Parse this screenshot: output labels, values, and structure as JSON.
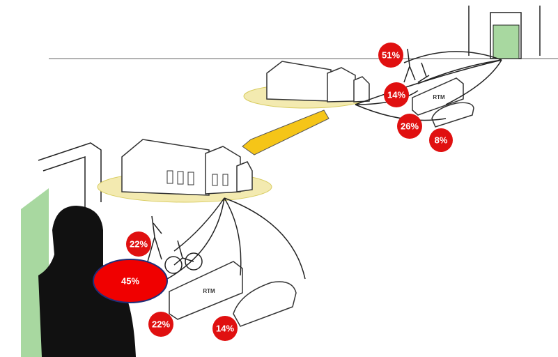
{
  "access": {
    "walk": "22%",
    "bike": "45%",
    "bus": "22%",
    "car": "14%"
  },
  "egress": {
    "walk": "51%",
    "bike": "14%",
    "bus": "26%",
    "car": "8%"
  },
  "bus_label": "RTM"
}
